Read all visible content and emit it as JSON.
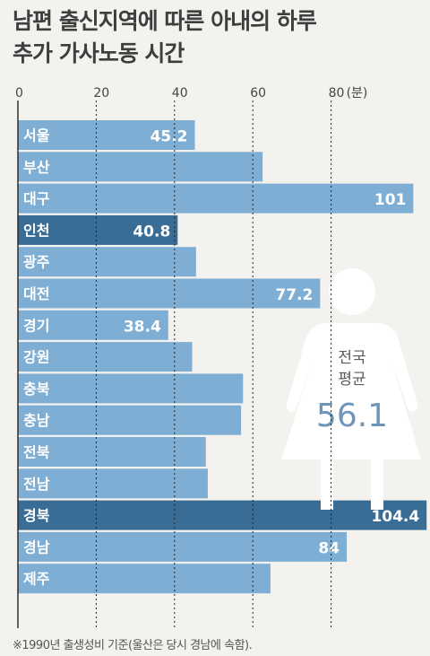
{
  "chart_data": {
    "type": "bar",
    "orientation": "horizontal",
    "title_lines": [
      "남편 출신지역에 따른 아내의 하루",
      "추가 가사노동 시간"
    ],
    "unit_label": "(분)",
    "xlim": [
      0,
      105
    ],
    "ticks": [
      0,
      20,
      40,
      60,
      80
    ],
    "grid": true,
    "categories": [
      "서울",
      "부산",
      "대구",
      "인천",
      "광주",
      "대전",
      "경기",
      "강원",
      "충북",
      "충남",
      "전북",
      "전남",
      "경북",
      "경남",
      "제주"
    ],
    "values": [
      45.2,
      62.5,
      101,
      40.8,
      45.5,
      77.2,
      38.4,
      44.5,
      57.5,
      57.0,
      48.0,
      48.5,
      104.4,
      84,
      64.5
    ],
    "value_labels": [
      "45.2",
      "",
      "101",
      "40.8",
      "",
      "77.2",
      "38.4",
      "",
      "",
      "",
      "",
      "",
      "104.4",
      "84",
      ""
    ],
    "highlighted": [
      "인천",
      "경북"
    ],
    "colors": {
      "bar": "#7eaed3",
      "bar_highlight": "#3a6d96",
      "bar_border": "#f3f2ef",
      "text_light": "#ffffff",
      "grid": "#222222",
      "figure": "#ffffff",
      "avg_text": "#5b5b5b",
      "avg_number": "#6d96b9"
    },
    "annotation": {
      "label_lines": [
        "전국",
        "평균"
      ],
      "value": "56.1",
      "icon": "woman-silhouette-icon"
    },
    "footnote": "※1990년 출생성비 기준(울산은 당시 경남에 속함)."
  }
}
